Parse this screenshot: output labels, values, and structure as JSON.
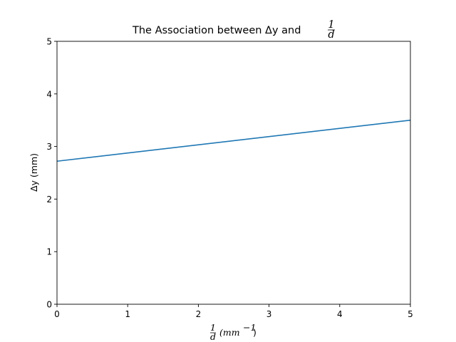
{
  "chart_data": {
    "type": "line",
    "title_text": "The Association between Δy and",
    "title_frac": {
      "num": "1",
      "den": "d"
    },
    "xlabel_frac": {
      "num": "1",
      "den": "d"
    },
    "xlabel_unit": "(mm",
    "xlabel_exp": "−1",
    "xlabel_close": ")",
    "ylabel": "Δy (mm)",
    "xlim": [
      0,
      5
    ],
    "ylim": [
      0,
      5
    ],
    "xticks": [
      0,
      1,
      2,
      3,
      4,
      5
    ],
    "yticks": [
      0,
      1,
      2,
      3,
      4,
      5
    ],
    "grid": false,
    "series": [
      {
        "color": "#1f77b4",
        "x": [
          0,
          5
        ],
        "y": [
          2.72,
          3.5
        ]
      }
    ]
  }
}
